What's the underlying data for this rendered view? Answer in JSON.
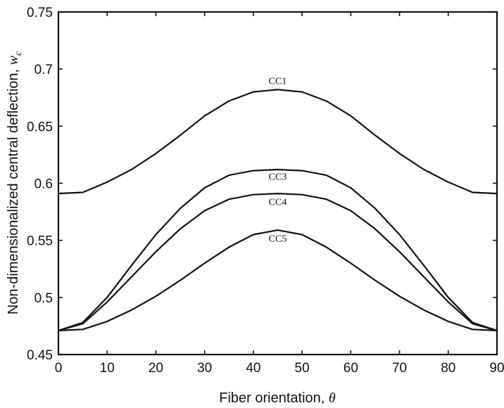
{
  "chart_data": {
    "type": "line",
    "xlabel": "Fiber orientation, ",
    "xlabel_symbol": "θ",
    "ylabel": "Non-dimensionalized central deflection, ",
    "ylabel_symbol": "w",
    "ylabel_subscript": "c",
    "xlim": [
      0,
      90
    ],
    "ylim": [
      0.45,
      0.75
    ],
    "xticks": [
      0,
      10,
      20,
      30,
      40,
      50,
      60,
      70,
      80,
      90
    ],
    "yticks": [
      0.45,
      0.5,
      0.55,
      0.6,
      0.65,
      0.7,
      0.75
    ],
    "xtick_labels": [
      "0",
      "10",
      "20",
      "30",
      "40",
      "50",
      "60",
      "70",
      "80",
      "90"
    ],
    "ytick_labels": [
      "0.45",
      "0.5",
      "0.55",
      "0.6",
      "0.65",
      "0.7",
      "0.75"
    ],
    "grid": false,
    "x": [
      0,
      5,
      10,
      15,
      20,
      25,
      30,
      35,
      40,
      45,
      50,
      55,
      60,
      65,
      70,
      75,
      80,
      85,
      90
    ],
    "series": [
      {
        "name": "CC1",
        "label_x": 45,
        "label_y": 0.687,
        "values": [
          0.591,
          0.592,
          0.601,
          0.612,
          0.626,
          0.642,
          0.659,
          0.672,
          0.68,
          0.682,
          0.68,
          0.672,
          0.659,
          0.642,
          0.626,
          0.612,
          0.601,
          0.592,
          0.591
        ]
      },
      {
        "name": "CC3",
        "label_x": 45,
        "label_y": 0.603,
        "values": [
          0.471,
          0.478,
          0.5,
          0.528,
          0.555,
          0.578,
          0.596,
          0.607,
          0.611,
          0.612,
          0.611,
          0.607,
          0.596,
          0.578,
          0.555,
          0.528,
          0.5,
          0.478,
          0.471
        ]
      },
      {
        "name": "CC4",
        "label_x": 45,
        "label_y": 0.581,
        "values": [
          0.471,
          0.477,
          0.496,
          0.518,
          0.54,
          0.56,
          0.576,
          0.586,
          0.59,
          0.591,
          0.59,
          0.586,
          0.576,
          0.56,
          0.54,
          0.518,
          0.496,
          0.477,
          0.471
        ]
      },
      {
        "name": "CC5",
        "label_x": 45,
        "label_y": 0.549,
        "values": [
          0.471,
          0.472,
          0.479,
          0.489,
          0.501,
          0.515,
          0.53,
          0.544,
          0.555,
          0.559,
          0.555,
          0.544,
          0.53,
          0.515,
          0.501,
          0.489,
          0.479,
          0.472,
          0.471
        ]
      }
    ]
  }
}
